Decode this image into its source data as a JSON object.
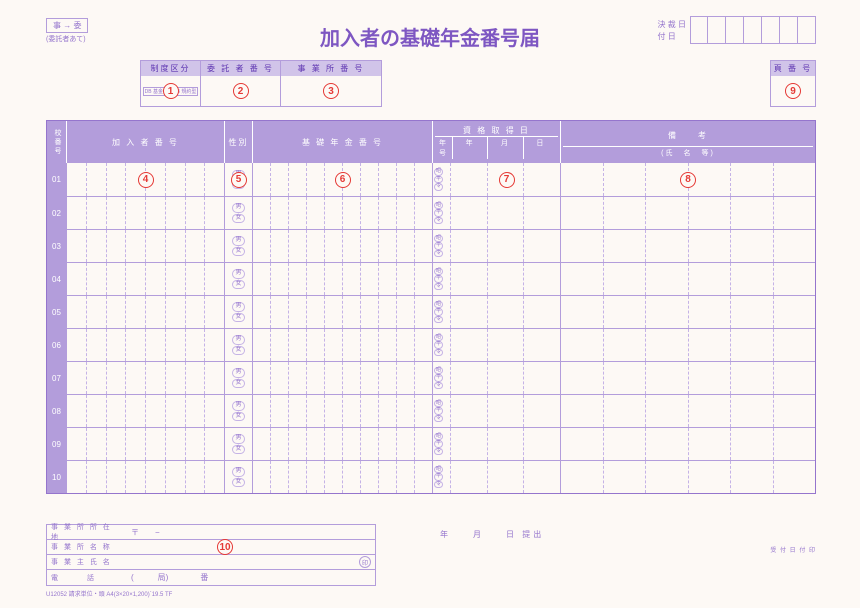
{
  "title": "加入者の基礎年金番号届",
  "top_left": {
    "box": "事 → 委",
    "sub": "(委託者あて)"
  },
  "top_right": {
    "l1": "決 裁 日",
    "l2": "付 日",
    "cells": 7
  },
  "header_boxes": {
    "seido": {
      "title": "制度区分",
      "db1": "DB 基金型",
      "db2": "DB 規約型"
    },
    "itaku": {
      "title": "委 託 者 番 号"
    },
    "jigyo": {
      "title": "事 業 所 番 号"
    },
    "page": {
      "title": "頁 番 号"
    }
  },
  "circles": {
    "c1": "1",
    "c2": "2",
    "c3": "3",
    "c4": "4",
    "c5": "5",
    "c6": "6",
    "c7": "7",
    "c8": "8",
    "c9": "9",
    "c10": "10"
  },
  "table": {
    "headers": {
      "check": "校番号",
      "member": "加 入 者 番 号",
      "sex": "性別",
      "pension": "基 礎 年 金 番 号",
      "date": "資 格 取 得 日",
      "date_sub": [
        "年号",
        "年",
        "月",
        "日"
      ],
      "remark": "備　　考",
      "remark_sub": "(氏　名　等)"
    },
    "rows": [
      "01",
      "02",
      "03",
      "04",
      "05",
      "06",
      "07",
      "08",
      "09",
      "10"
    ],
    "sex": [
      "男",
      "女"
    ],
    "era": [
      "昭",
      "平",
      "令"
    ]
  },
  "bottom_left": {
    "r1": "事 業 所 所 在 地",
    "r1v": "〒　　−",
    "r2": "事 業 所 名 称",
    "r3": "事 業 主 氏 名",
    "seal": "印",
    "r4": "電　　　話",
    "r4v": "(　　　局)　　　　番"
  },
  "bottom_mid": "年　　月　　日 提出",
  "bottom_right_label": "受 付 日 付 印",
  "form_code": "U12052 請求単位・頭 A4(3×20×1,200)`19.5 TF",
  "colors": {
    "accent": "#9575cd",
    "header_bg": "#b39ddb",
    "light_bg": "#d1c4e9",
    "red": "#e53935",
    "paper": "#fdf9f5"
  }
}
